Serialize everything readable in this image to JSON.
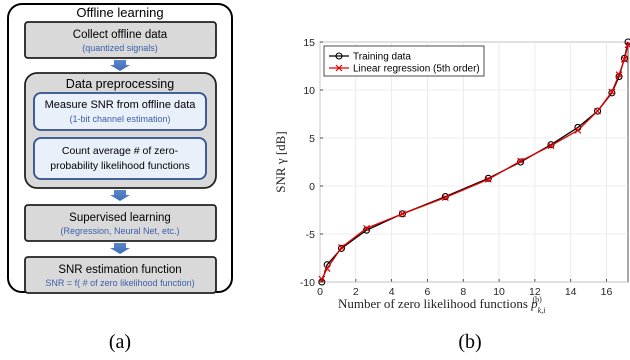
{
  "panel_a": {
    "title": "Offline learning",
    "collect": {
      "title": "Collect offline data",
      "subtitle": "(quantized signals)"
    },
    "preprocessing": {
      "title": "Data preprocessing",
      "measure": {
        "title": "Measure SNR from offline data",
        "subtitle": "(1-bit channel estimation)"
      },
      "count": {
        "line1": "Count average # of  zero-",
        "line2": "probability likelihood functions"
      }
    },
    "supervised": {
      "title": "Supervised learning",
      "subtitle": "(Regression, Neural Net, etc.)"
    },
    "estimation": {
      "title": "SNR estimation function",
      "subtitle": "SNR = f( # of zero likelihood function)"
    },
    "caption": "(a)"
  },
  "panel_b": {
    "caption": "(b)",
    "chart_data": {
      "type": "line",
      "xlabel": "Number of zero likelihood functions",
      "ylabel": "SNR γ [dB]",
      "xlim": [
        0,
        17.2
      ],
      "ylim": [
        -10,
        15
      ],
      "xticks": [
        0,
        2,
        4,
        6,
        8,
        10,
        12,
        14,
        16
      ],
      "yticks": [
        -10,
        -5,
        0,
        5,
        10,
        15
      ],
      "grid": true,
      "legend_position": "top-left",
      "series": [
        {
          "name": "Training data",
          "color": "#000000",
          "marker": "circle",
          "x": [
            0.1,
            0.4,
            1.2,
            2.6,
            4.6,
            7.0,
            9.4,
            11.2,
            12.9,
            14.4,
            15.5,
            16.3,
            16.7,
            17.0,
            17.2
          ],
          "y": [
            -10.0,
            -8.2,
            -6.5,
            -4.6,
            -2.9,
            -1.1,
            0.8,
            2.5,
            4.3,
            6.1,
            7.8,
            9.7,
            11.4,
            13.3,
            15.0
          ]
        },
        {
          "name": "Linear regression (5th order)",
          "color": "#e00000",
          "marker": "x",
          "x": [
            0.1,
            0.4,
            1.2,
            2.6,
            4.6,
            7.0,
            9.4,
            11.2,
            12.9,
            14.4,
            15.5,
            16.3,
            16.7,
            17.0,
            17.2
          ],
          "y": [
            -9.7,
            -8.6,
            -6.4,
            -4.4,
            -2.9,
            -1.2,
            0.7,
            2.6,
            4.2,
            5.8,
            7.8,
            9.8,
            11.6,
            13.2,
            14.7
          ]
        }
      ]
    }
  }
}
